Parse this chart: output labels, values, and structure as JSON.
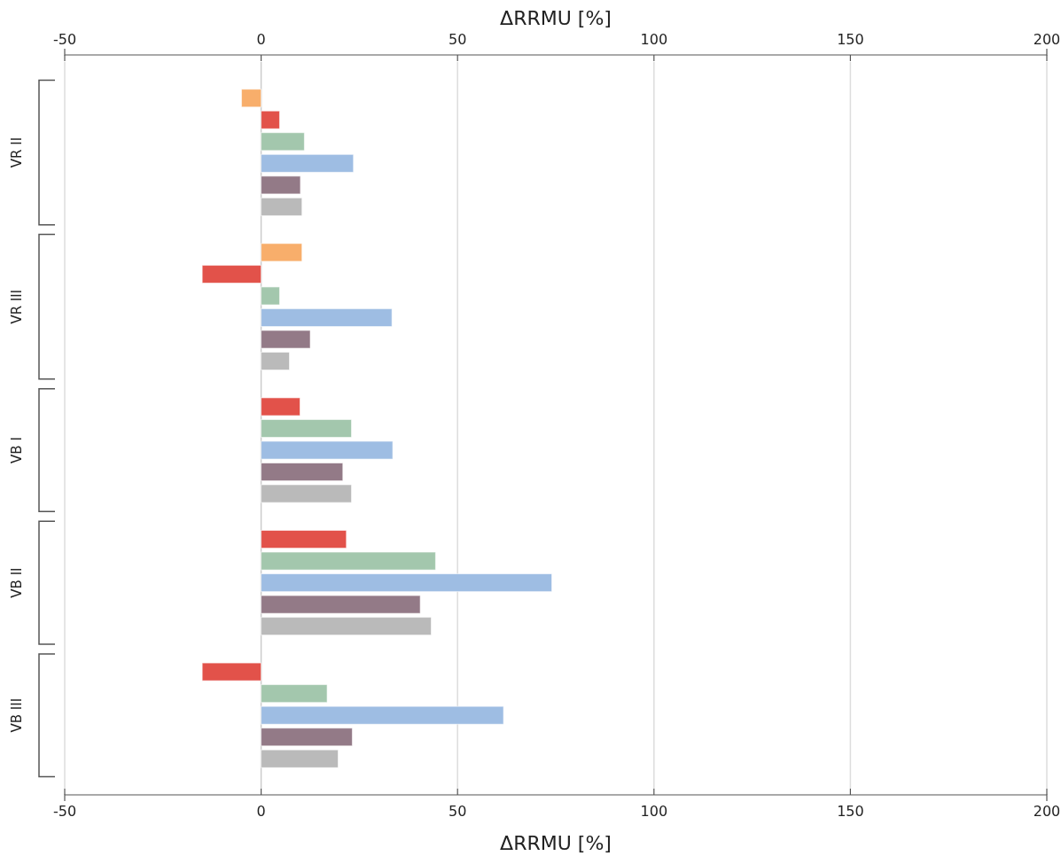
{
  "chart_data": {
    "type": "bar",
    "orientation": "horizontal",
    "xlabel": "ΔRRMU [%]",
    "x2label": "ΔRRMU [%]",
    "categories": [
      "VR II",
      "VR III",
      "VB I",
      "VB II",
      "VB III"
    ],
    "series": [
      {
        "color": "#f8ae6b",
        "values": [
          -5,
          10.4,
          null,
          null,
          null
        ]
      },
      {
        "color": "#e2524a",
        "values": [
          4.7,
          -15,
          9.9,
          21.7,
          -15
        ]
      },
      {
        "color": "#a3c7ad",
        "values": [
          11,
          4.7,
          23,
          44.4,
          16.8
        ]
      },
      {
        "color": "#9ebde3",
        "values": [
          23.5,
          33.3,
          33.5,
          74,
          61.7
        ]
      },
      {
        "color": "#937a87",
        "values": [
          10,
          12.5,
          20.8,
          40.5,
          23.2
        ]
      },
      {
        "color": "#bababa",
        "values": [
          10.4,
          7.2,
          23,
          43.3,
          19.6
        ]
      }
    ],
    "xlim": [
      -50,
      200
    ],
    "xticks": [
      -50,
      0,
      50,
      100,
      150,
      200
    ],
    "x2lim": [
      -50,
      200
    ],
    "x2ticks": [
      -50,
      0,
      50,
      100,
      150,
      200
    ],
    "grid": "x"
  }
}
